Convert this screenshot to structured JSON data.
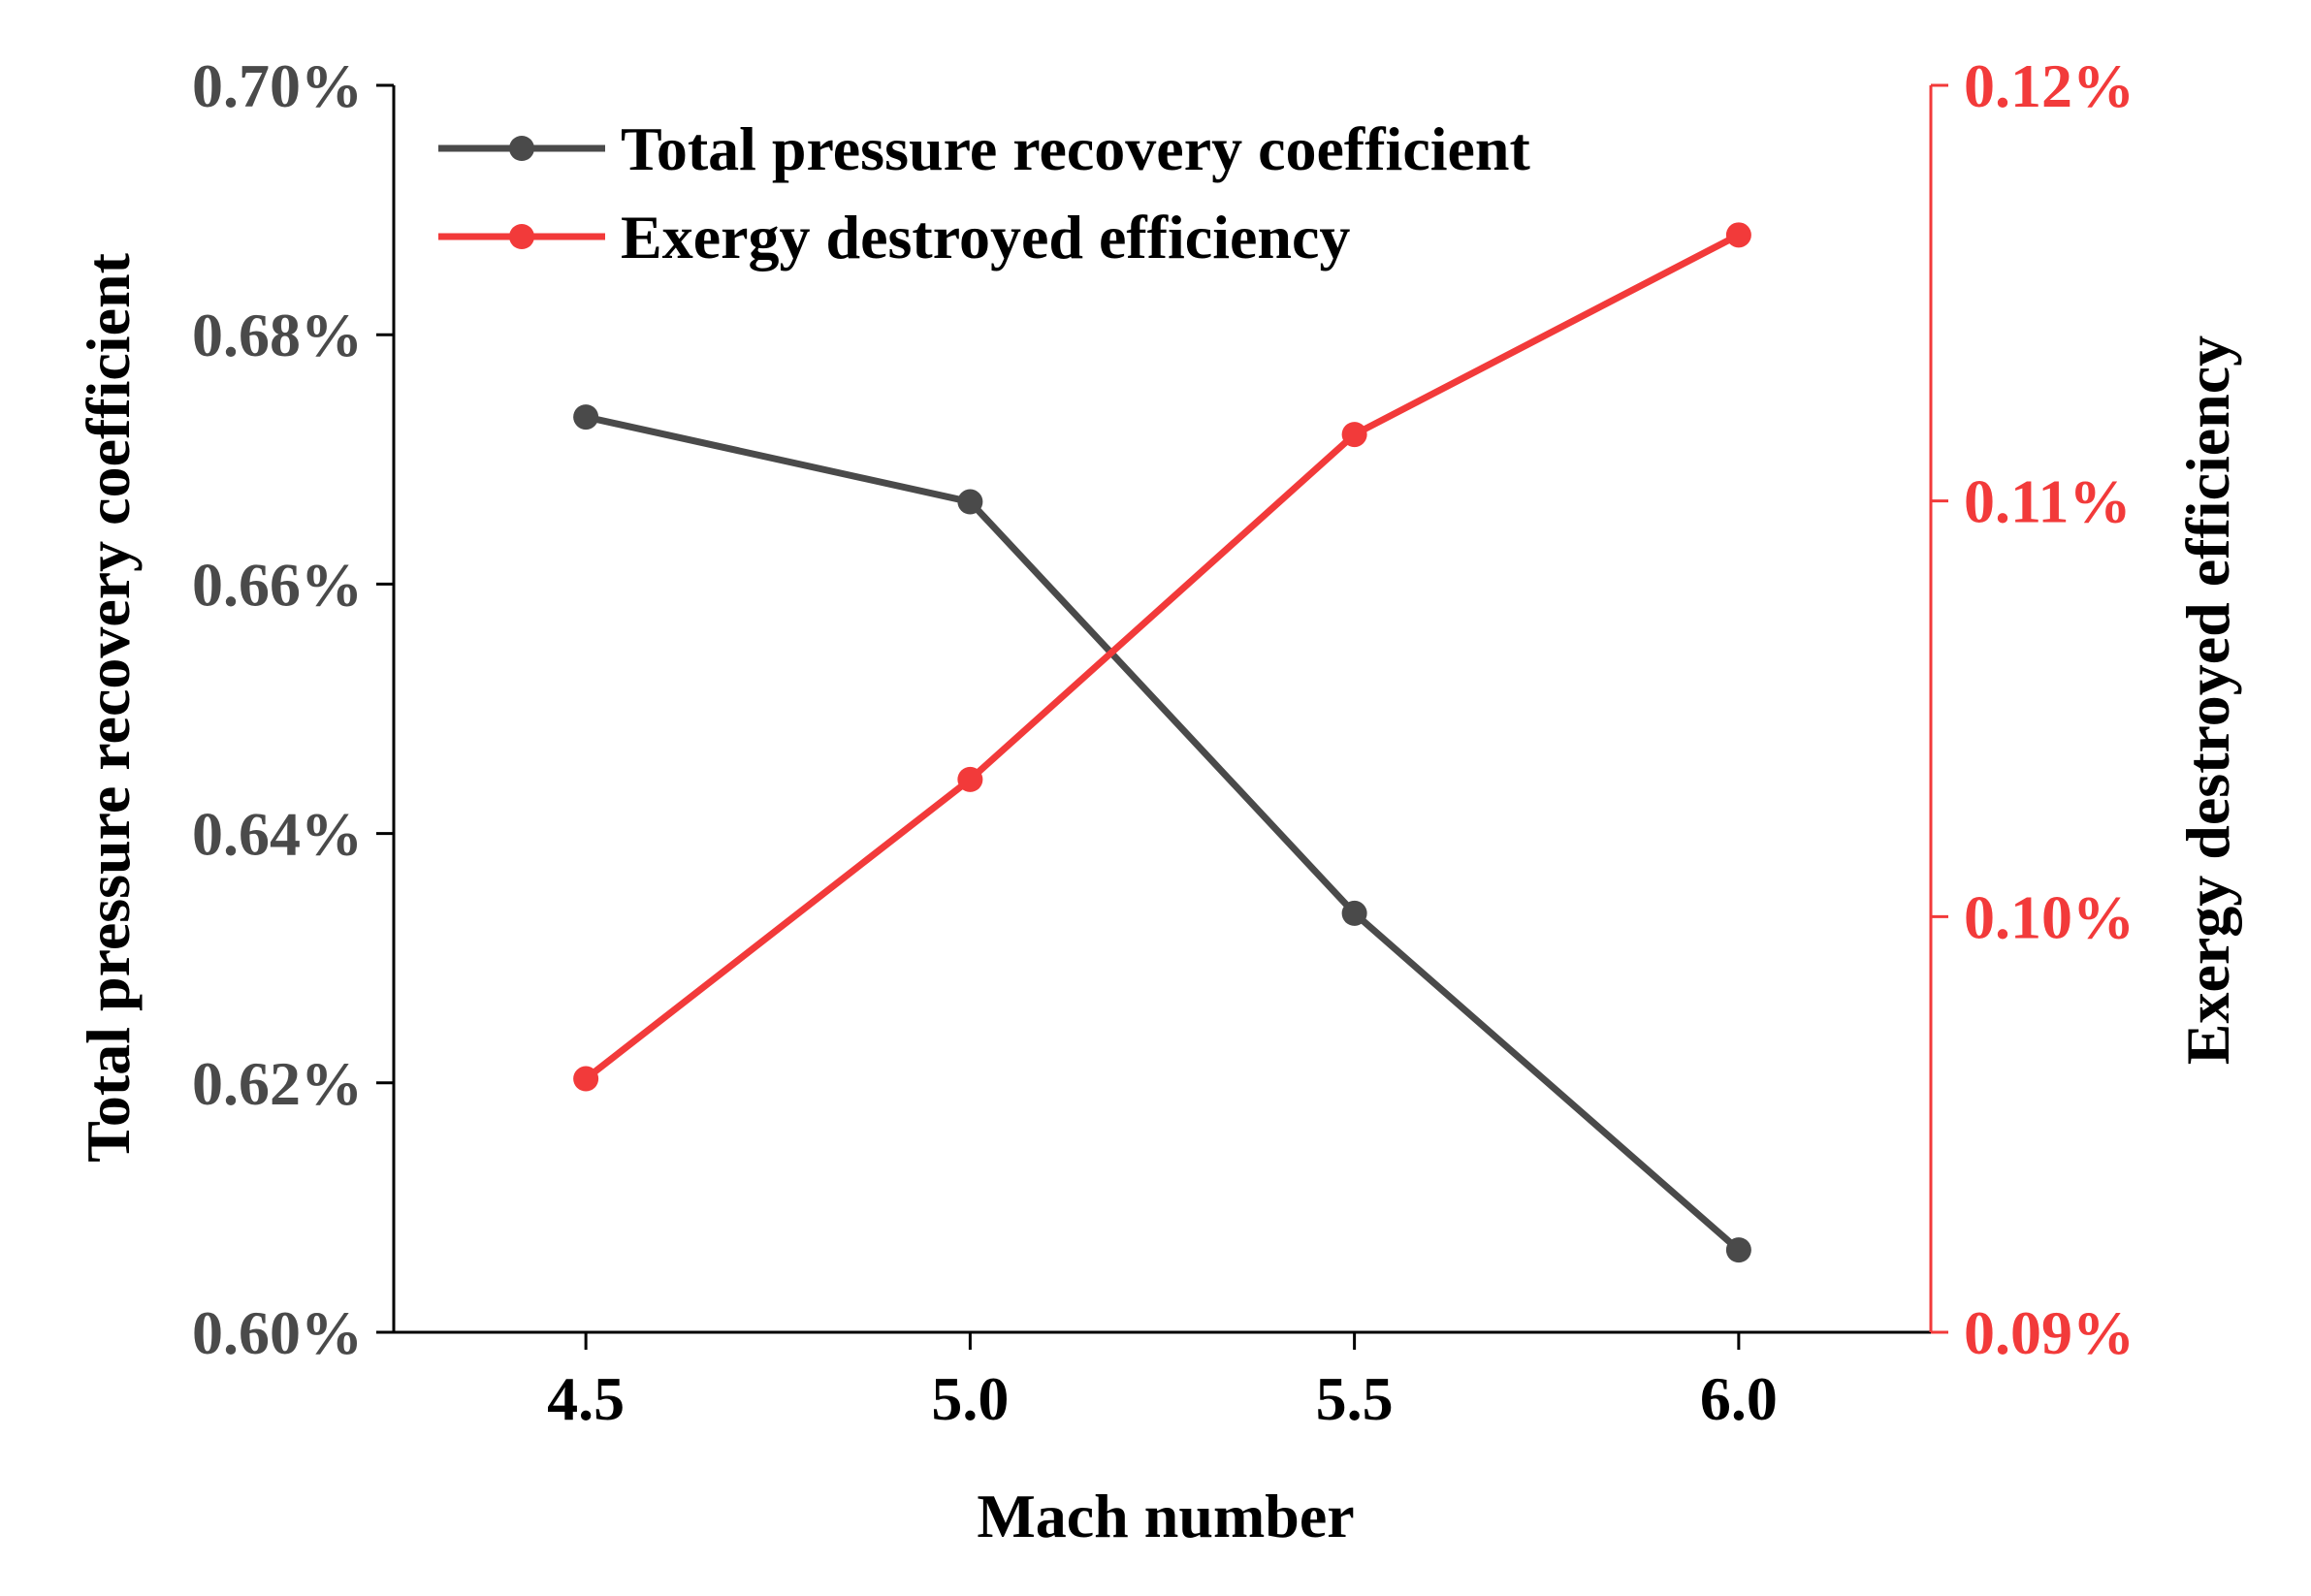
{
  "chart_data": {
    "type": "line",
    "xlabel": "Mach number",
    "ylabel_left": "Total pressure recovery coefficient",
    "ylabel_right": "Exergy destroyed efficiency",
    "x": [
      4.5,
      5.0,
      5.5,
      6.0
    ],
    "xlim": [
      4.25,
      6.25
    ],
    "x_ticks": [
      "4.5",
      "5.0",
      "5.5",
      "6.0"
    ],
    "y_left_lim": [
      0.6,
      0.7
    ],
    "y_left_ticks": [
      "0.60%",
      "0.62%",
      "0.64%",
      "0.66%",
      "0.68%",
      "0.70%"
    ],
    "y_right_lim": [
      0.09,
      0.12
    ],
    "y_right_ticks": [
      "0.09%",
      "0.10%",
      "0.11%",
      "0.12%"
    ],
    "grid": false,
    "legend_position": "top-left",
    "series": [
      {
        "name": "Total pressure recovery coefficient",
        "axis": "left",
        "color": "#4a4a4a",
        "values": [
          0.6734,
          0.6666,
          0.6336,
          0.6066
        ]
      },
      {
        "name": "Exergy destroyed efficiency",
        "axis": "right",
        "color": "#f23a3a",
        "values": [
          0.0961,
          0.1033,
          0.1116,
          0.1164
        ]
      }
    ],
    "colors": {
      "left_axis": "#4a4a4a",
      "right_axis": "#f23a3a",
      "bottom_axis": "#000000"
    }
  }
}
